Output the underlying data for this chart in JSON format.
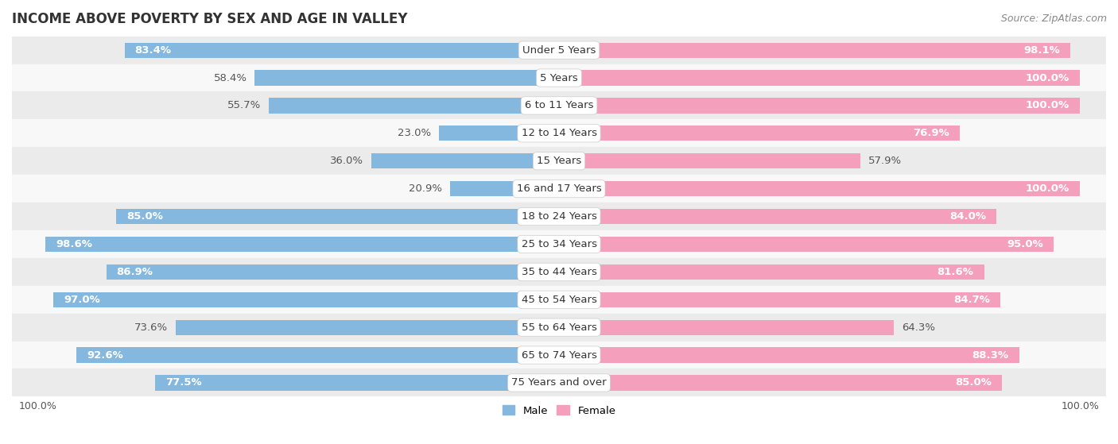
{
  "title": "INCOME ABOVE POVERTY BY SEX AND AGE IN VALLEY",
  "source": "Source: ZipAtlas.com",
  "categories": [
    "Under 5 Years",
    "5 Years",
    "6 to 11 Years",
    "12 to 14 Years",
    "15 Years",
    "16 and 17 Years",
    "18 to 24 Years",
    "25 to 34 Years",
    "35 to 44 Years",
    "45 to 54 Years",
    "55 to 64 Years",
    "65 to 74 Years",
    "75 Years and over"
  ],
  "male_values": [
    83.4,
    58.4,
    55.7,
    23.0,
    36.0,
    20.9,
    85.0,
    98.6,
    86.9,
    97.0,
    73.6,
    92.6,
    77.5
  ],
  "female_values": [
    98.1,
    100.0,
    100.0,
    76.9,
    57.9,
    100.0,
    84.0,
    95.0,
    81.6,
    84.7,
    64.3,
    88.3,
    85.0
  ],
  "male_color": "#85b8de",
  "female_color": "#f4a0bc",
  "male_label": "Male",
  "female_label": "Female",
  "bg_light": "#ebebeb",
  "bg_white": "#f8f8f8",
  "bar_height": 0.55,
  "title_fontsize": 12,
  "label_fontsize": 9.5,
  "tick_fontsize": 9,
  "source_fontsize": 9,
  "value_label_threshold": 75
}
